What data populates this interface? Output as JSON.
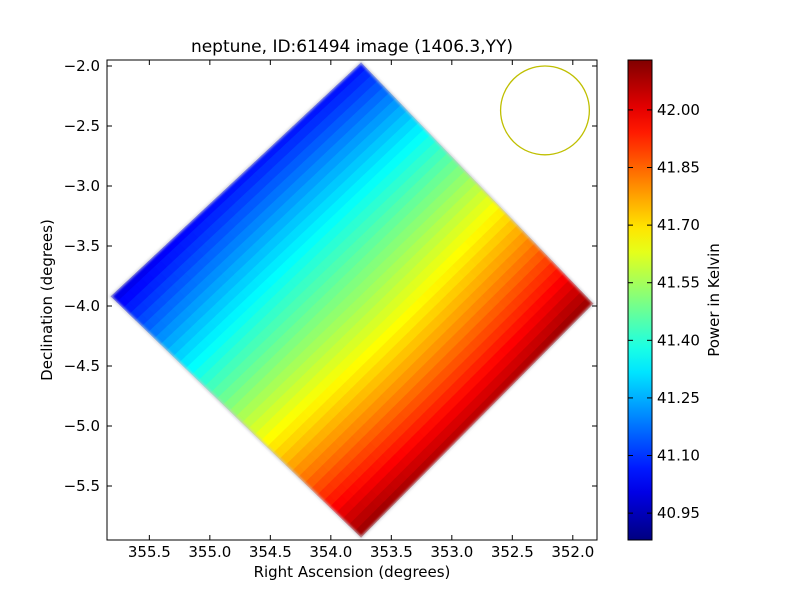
{
  "chart_data": {
    "type": "heatmap",
    "title": "neptune, ID:61494 image (1406.3,YY)",
    "xlabel": "Right Ascension (degrees)",
    "ylabel": "Declination (degrees)",
    "colorbar_label": "Power in Kelvin",
    "xlim": [
      355.85,
      351.8
    ],
    "ylim": [
      -5.95,
      -1.95
    ],
    "x_ticks": [
      355.5,
      355.0,
      354.5,
      354.0,
      353.5,
      353.0,
      352.5,
      352.0
    ],
    "x_tick_labels": [
      "355.5",
      "355.0",
      "354.5",
      "354.0",
      "353.5",
      "353.0",
      "352.5",
      "352.0"
    ],
    "y_ticks": [
      -2.0,
      -2.5,
      -3.0,
      -3.5,
      -4.0,
      -4.5,
      -5.0,
      -5.5
    ],
    "y_tick_labels": [
      "−2.0",
      "−2.5",
      "−3.0",
      "−3.5",
      "−4.0",
      "−4.5",
      "−5.0",
      "−5.5"
    ],
    "colorbar_range": [
      40.88,
      42.13
    ],
    "colorbar_ticks": [
      40.95,
      41.1,
      41.25,
      41.4,
      41.55,
      41.7,
      41.85,
      42.0
    ],
    "colorbar_tick_labels": [
      "40.95",
      "41.10",
      "41.25",
      "41.40",
      "41.55",
      "41.70",
      "41.85",
      "42.00"
    ],
    "colormap": "jet",
    "image_footprint": {
      "shape": "diamond",
      "corners_ra_dec": [
        [
          353.75,
          -1.97
        ],
        [
          351.83,
          -3.98
        ],
        [
          353.75,
          -5.93
        ],
        [
          355.82,
          -3.92
        ]
      ]
    },
    "gradient": {
      "description_values_kelvin": {
        "north_corner": 41.05,
        "east_corner": 42.1,
        "south_corner": 42.1,
        "west_corner": 41.0,
        "center": 41.45
      }
    },
    "beam_circle": {
      "center_ra": 352.23,
      "center_dec": -2.37,
      "radius_deg": 0.37,
      "color": "#bfbf00"
    },
    "grid": false,
    "legend": "none"
  }
}
